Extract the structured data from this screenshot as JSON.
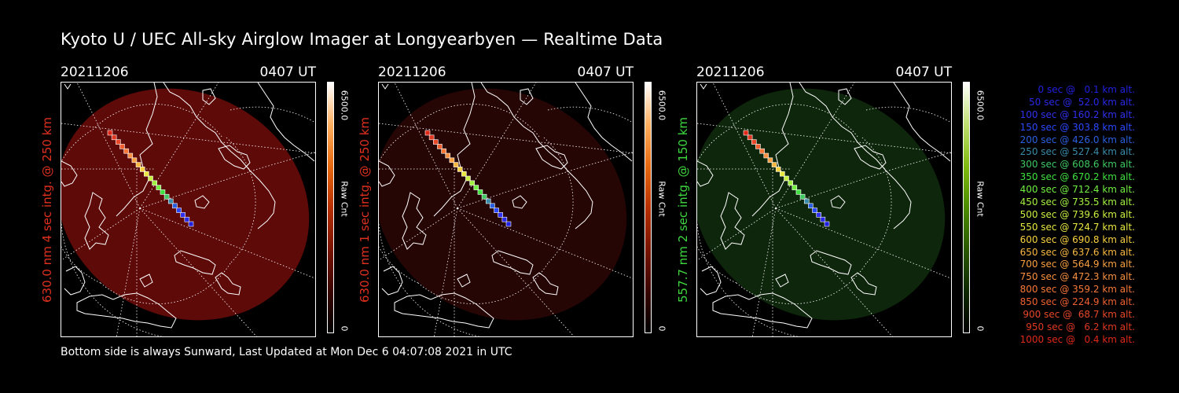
{
  "title": "Kyoto U / UEC All-sky Airglow Imager at Longyearbyen — Realtime Data",
  "footer": "Bottom side is always Sunward, Last Updated at Mon Dec  6 04:07:08 2021 in UTC",
  "panels": [
    {
      "date": "20211206",
      "time": "0407 UT",
      "ylabel": "630.0 nm 4 sec intg. @ 250 km",
      "label_color": "#e0301e",
      "cbar_max": "6500.0",
      "cbar_min": "0",
      "cbar_label": "Raw Cnt",
      "image_color": "#6e0c0a",
      "image_opacity": 0.85,
      "colormap": [
        "#000000",
        "#3a0500",
        "#7a1400",
        "#b83000",
        "#e86a10",
        "#ffb060",
        "#ffffff"
      ]
    },
    {
      "date": "20211206",
      "time": "0407 UT",
      "ylabel": "630.0 nm 1 sec intg. @ 250 km",
      "label_color": "#e0301e",
      "cbar_max": "6500.0",
      "cbar_min": "0",
      "cbar_label": "Raw Cnt",
      "image_color": "#2a0605",
      "image_opacity": 0.9,
      "colormap": [
        "#000000",
        "#3a0500",
        "#7a1400",
        "#b83000",
        "#e86a10",
        "#ffb060",
        "#ffffff"
      ]
    },
    {
      "date": "20211206",
      "time": "0407 UT",
      "ylabel": "557.7 nm 2 sec intg. @ 150 km",
      "label_color": "#3ed83e",
      "cbar_max": "6500.0",
      "cbar_min": "0",
      "cbar_label": "Raw Cnt",
      "image_color": "#0f2a0c",
      "image_opacity": 0.9,
      "colormap": [
        "#000000",
        "#0e2a00",
        "#2a5a00",
        "#4c8c00",
        "#80bb10",
        "#c0e070",
        "#ffffff"
      ]
    }
  ],
  "legend": [
    {
      "text": "0 sec @   0.1 km alt.",
      "color": "#2020e0"
    },
    {
      "text": "50 sec @  52.0 km alt.",
      "color": "#2828e8"
    },
    {
      "text": "100 sec @ 160.2 km alt.",
      "color": "#3030f0"
    },
    {
      "text": "150 sec @ 303.8 km alt.",
      "color": "#2a48ff"
    },
    {
      "text": "200 sec @ 426.0 km alt.",
      "color": "#2a60e0"
    },
    {
      "text": "250 sec @ 527.4 km alt.",
      "color": "#3a8aaa"
    },
    {
      "text": "300 sec @ 608.6 km alt.",
      "color": "#3ec860"
    },
    {
      "text": "350 sec @ 670.2 km alt.",
      "color": "#40e040"
    },
    {
      "text": "400 sec @ 712.4 km alt.",
      "color": "#70f040"
    },
    {
      "text": "450 sec @ 735.5 km alt.",
      "color": "#a0f040"
    },
    {
      "text": "500 sec @ 739.6 km alt.",
      "color": "#c8f040"
    },
    {
      "text": "550 sec @ 724.7 km alt.",
      "color": "#e8e840"
    },
    {
      "text": "600 sec @ 690.8 km alt.",
      "color": "#f8d040"
    },
    {
      "text": "650 sec @ 637.6 km alt.",
      "color": "#f8b840"
    },
    {
      "text": "700 sec @ 564.9 km alt.",
      "color": "#f8a040"
    },
    {
      "text": "750 sec @ 472.3 km alt.",
      "color": "#f89040"
    },
    {
      "text": "800 sec @ 359.2 km alt.",
      "color": "#f87838"
    },
    {
      "text": "850 sec @ 224.9 km alt.",
      "color": "#f06030"
    },
    {
      "text": "900 sec @  68.7 km alt.",
      "color": "#e84828"
    },
    {
      "text": "950 sec @   6.2 km alt.",
      "color": "#e03820"
    },
    {
      "text": "1000 sec @   0.4 km alt.",
      "color": "#e02818"
    }
  ],
  "chart_data": {
    "type": "scatter",
    "description_series": "satellite track footprint altitudes",
    "x": [
      0,
      50,
      100,
      150,
      200,
      250,
      300,
      350,
      400,
      450,
      500,
      550,
      600,
      650,
      700,
      750,
      800,
      850,
      900,
      950,
      1000
    ],
    "y": [
      0.1,
      52.0,
      160.2,
      303.8,
      426.0,
      527.4,
      608.6,
      670.2,
      712.4,
      735.5,
      739.6,
      724.7,
      690.8,
      637.6,
      564.9,
      472.3,
      359.2,
      224.9,
      68.7,
      6.2,
      0.4
    ],
    "colorbar_range": [
      0,
      6500
    ]
  }
}
